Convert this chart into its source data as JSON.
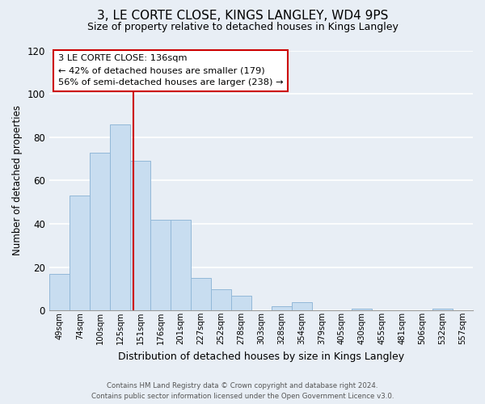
{
  "title": "3, LE CORTE CLOSE, KINGS LANGLEY, WD4 9PS",
  "subtitle": "Size of property relative to detached houses in Kings Langley",
  "xlabel": "Distribution of detached houses by size in Kings Langley",
  "ylabel": "Number of detached properties",
  "bar_labels": [
    "49sqm",
    "74sqm",
    "100sqm",
    "125sqm",
    "151sqm",
    "176sqm",
    "201sqm",
    "227sqm",
    "252sqm",
    "278sqm",
    "303sqm",
    "328sqm",
    "354sqm",
    "379sqm",
    "405sqm",
    "430sqm",
    "455sqm",
    "481sqm",
    "506sqm",
    "532sqm",
    "557sqm"
  ],
  "bar_values": [
    17,
    53,
    73,
    86,
    69,
    42,
    42,
    15,
    10,
    7,
    0,
    2,
    4,
    0,
    0,
    1,
    0,
    0,
    0,
    1,
    0
  ],
  "bar_color": "#c8ddf0",
  "bar_edge_color": "#92b8d8",
  "ylim": [
    0,
    120
  ],
  "yticks": [
    0,
    20,
    40,
    60,
    80,
    100,
    120
  ],
  "red_line_x": 4.1,
  "property_line_label": "3 LE CORTE CLOSE: 136sqm",
  "annotation_line1": "← 42% of detached houses are smaller (179)",
  "annotation_line2": "56% of semi-detached houses are larger (238) →",
  "red_line_color": "#cc0000",
  "box_facecolor": "#ffffff",
  "box_edgecolor": "#cc0000",
  "footnote1": "Contains HM Land Registry data © Crown copyright and database right 2024.",
  "footnote2": "Contains public sector information licensed under the Open Government Licence v3.0.",
  "background_color": "#e8eef5",
  "grid_color": "#ffffff",
  "title_fontsize": 11,
  "subtitle_fontsize": 9
}
